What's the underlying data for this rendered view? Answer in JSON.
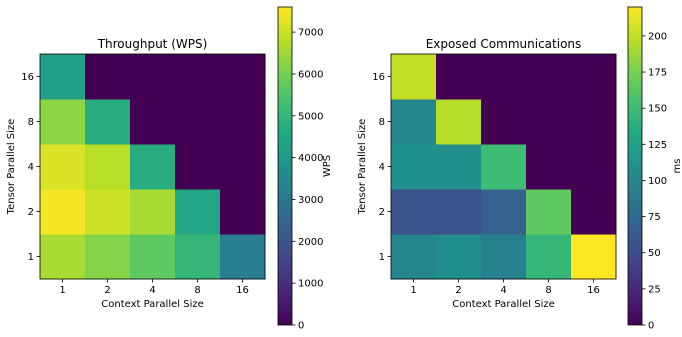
{
  "chart_data": [
    {
      "type": "heatmap",
      "title": "Throughput (WPS)",
      "xlabel": "Context Parallel Size",
      "ylabel": "Tensor Parallel Size",
      "x": [
        "1",
        "2",
        "4",
        "8",
        "16"
      ],
      "y": [
        "1",
        "2",
        "4",
        "8",
        "16"
      ],
      "colormap": "viridis",
      "values": [
        [
          6600,
          6200,
          5700,
          5000,
          3200
        ],
        [
          7500,
          7000,
          6600,
          4500,
          0
        ],
        [
          7200,
          6800,
          4700,
          0,
          0
        ],
        [
          6300,
          4700,
          0,
          0,
          0
        ],
        [
          4300,
          0,
          0,
          0,
          0
        ]
      ],
      "colorbar": {
        "label": "WPS",
        "min": 0,
        "max": 7600,
        "ticks": [
          "0",
          "1000",
          "2000",
          "3000",
          "4000",
          "5000",
          "6000",
          "7000"
        ]
      }
    },
    {
      "type": "heatmap",
      "title": "Exposed Communications",
      "xlabel": "Context Parallel Size",
      "ylabel": "Tensor Parallel Size",
      "x": [
        "1",
        "2",
        "4",
        "8",
        "16"
      ],
      "y": [
        "1",
        "2",
        "4",
        "8",
        "16"
      ],
      "colormap": "viridis",
      "values": [
        [
          100,
          107,
          95,
          145,
          220
        ],
        [
          55,
          55,
          68,
          165,
          0
        ],
        [
          110,
          108,
          150,
          0,
          0
        ],
        [
          100,
          195,
          0,
          0,
          0
        ],
        [
          200,
          0,
          0,
          0,
          0
        ]
      ],
      "colorbar": {
        "label": "ms",
        "min": 0,
        "max": 220,
        "ticks": [
          "0",
          "25",
          "50",
          "75",
          "100",
          "125",
          "150",
          "175",
          "200"
        ]
      }
    }
  ]
}
